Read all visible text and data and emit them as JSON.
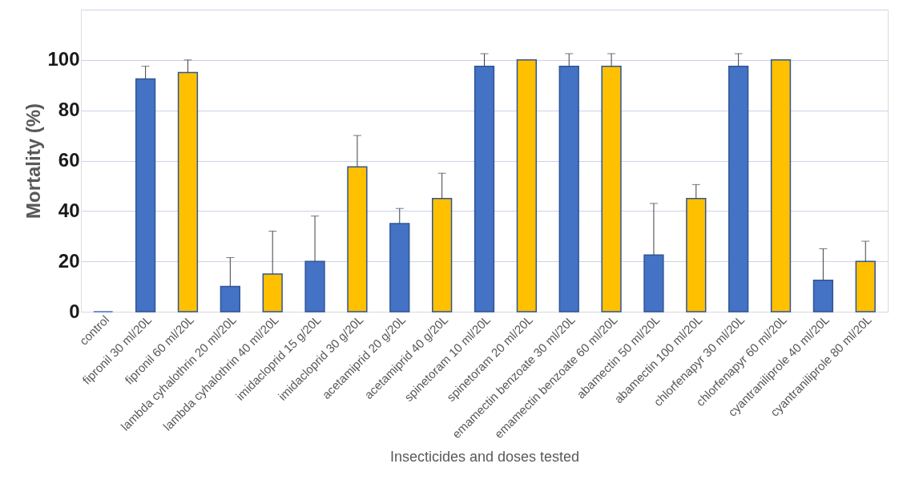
{
  "chart_data": {
    "type": "bar",
    "xlabel": "Insecticides and doses tested",
    "ylabel": "Mortality (%)",
    "categories": [
      "control",
      "fipronil 30 ml/20L",
      "fipronil 60 ml/20L",
      "lambda cyhalothrin 20 ml/20L",
      "lambda cyhalothrin 40 ml/20L",
      "imidacloprid 15 g/20L",
      "imidacloprid 30 g/20L",
      "acetamiprid 20 g/20L",
      "acetamiprid 40 g/20L",
      "spinetoram 10 ml/20L",
      "spinetoram 20 ml/20L",
      "emamectin benzoate 30 ml/20L",
      "emamectin benzoate 60 ml/20L",
      "abamectin 50 ml/20L",
      "abamectin 100 ml/20L",
      "chlorfenapyr 30 ml/20L",
      "chlorfenapyr 60 ml/20L",
      "cyantraniliprole 40 ml/20L",
      "cyantraniliprole 80 ml/20L"
    ],
    "values": [
      0,
      92.5,
      95,
      10,
      15,
      20,
      57.5,
      35,
      45,
      97.5,
      100,
      97.5,
      97.5,
      22.5,
      45,
      97.5,
      100,
      12.5,
      20
    ],
    "errors": [
      null,
      [
        92.5,
        97.5
      ],
      [
        95,
        100
      ],
      [
        10,
        21.5
      ],
      [
        15,
        32
      ],
      [
        20,
        38
      ],
      [
        57.5,
        70
      ],
      [
        35,
        41
      ],
      [
        45,
        55
      ],
      [
        97.5,
        102.5
      ],
      null,
      [
        97.5,
        102.5
      ],
      [
        97.5,
        102.5
      ],
      [
        22.5,
        43
      ],
      [
        45,
        50.5
      ],
      [
        97.5,
        102.5
      ],
      null,
      [
        12.5,
        25
      ],
      [
        20,
        28
      ]
    ],
    "colors": [
      "#4472c4",
      "#4472c4",
      "#ffc000",
      "#4472c4",
      "#ffc000",
      "#4472c4",
      "#ffc000",
      "#4472c4",
      "#ffc000",
      "#4472c4",
      "#ffc000",
      "#4472c4",
      "#ffc000",
      "#4472c4",
      "#ffc000",
      "#4472c4",
      "#ffc000",
      "#4472c4",
      "#ffc000"
    ],
    "ylim": [
      0,
      120
    ],
    "yticks": [
      0,
      20,
      40,
      60,
      80,
      100,
      {
        "value": 120,
        "label": null
      }
    ],
    "grid": "y"
  }
}
